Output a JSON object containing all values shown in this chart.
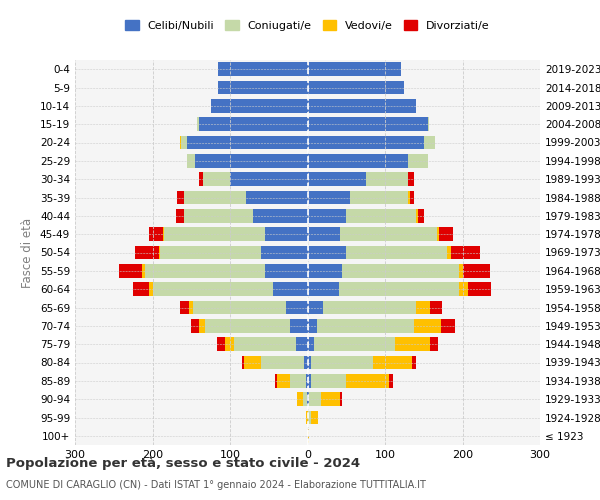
{
  "age_groups": [
    "100+",
    "95-99",
    "90-94",
    "85-89",
    "80-84",
    "75-79",
    "70-74",
    "65-69",
    "60-64",
    "55-59",
    "50-54",
    "45-49",
    "40-44",
    "35-39",
    "30-34",
    "25-29",
    "20-24",
    "15-19",
    "10-14",
    "5-9",
    "0-4"
  ],
  "birth_years": [
    "≤ 1923",
    "1924-1928",
    "1929-1933",
    "1934-1938",
    "1939-1943",
    "1944-1948",
    "1949-1953",
    "1954-1958",
    "1959-1963",
    "1964-1968",
    "1969-1973",
    "1974-1978",
    "1979-1983",
    "1984-1988",
    "1989-1993",
    "1994-1998",
    "1999-2003",
    "2004-2008",
    "2009-2013",
    "2014-2018",
    "2019-2023"
  ],
  "colors": {
    "celibi": "#4472c4",
    "coniugati": "#c5d9a8",
    "vedovi": "#ffc000",
    "divorziati": "#e00000"
  },
  "males": {
    "celibi": [
      0,
      0,
      1,
      2,
      5,
      15,
      22,
      28,
      45,
      55,
      60,
      55,
      70,
      80,
      100,
      145,
      155,
      140,
      125,
      115,
      115
    ],
    "coniugati": [
      0,
      0,
      5,
      20,
      55,
      80,
      110,
      120,
      155,
      155,
      130,
      130,
      90,
      80,
      35,
      10,
      8,
      2,
      0,
      0,
      0
    ],
    "vedovi": [
      0,
      2,
      8,
      18,
      22,
      12,
      8,
      5,
      5,
      3,
      2,
      2,
      0,
      0,
      0,
      0,
      2,
      0,
      0,
      0,
      0
    ],
    "divorziati": [
      0,
      0,
      0,
      2,
      3,
      10,
      10,
      12,
      20,
      30,
      30,
      18,
      10,
      8,
      5,
      0,
      0,
      0,
      0,
      0,
      0
    ]
  },
  "females": {
    "celibi": [
      0,
      0,
      2,
      5,
      5,
      8,
      12,
      20,
      40,
      45,
      50,
      42,
      50,
      55,
      75,
      130,
      150,
      155,
      140,
      125,
      120
    ],
    "coniugati": [
      0,
      5,
      15,
      45,
      80,
      105,
      125,
      120,
      155,
      150,
      130,
      125,
      90,
      75,
      55,
      25,
      15,
      2,
      0,
      0,
      0
    ],
    "vedovi": [
      2,
      8,
      25,
      55,
      50,
      45,
      35,
      18,
      12,
      5,
      5,
      3,
      2,
      2,
      0,
      0,
      0,
      0,
      0,
      0,
      0
    ],
    "divorziati": [
      0,
      0,
      2,
      5,
      5,
      10,
      18,
      15,
      30,
      35,
      38,
      18,
      8,
      5,
      8,
      0,
      0,
      0,
      0,
      0,
      0
    ]
  },
  "title": "Popolazione per età, sesso e stato civile - 2024",
  "subtitle": "COMUNE DI CARAGLIO (CN) - Dati ISTAT 1° gennaio 2024 - Elaborazione TUTTITALIA.IT",
  "ylabel_left": "Fasce di età",
  "legend_labels": [
    "Celibi/Nubili",
    "Coniugati/e",
    "Vedovi/e",
    "Divorziati/e"
  ],
  "xlim": 300,
  "bg_color": "#ffffff",
  "grid_color": "#cccccc"
}
